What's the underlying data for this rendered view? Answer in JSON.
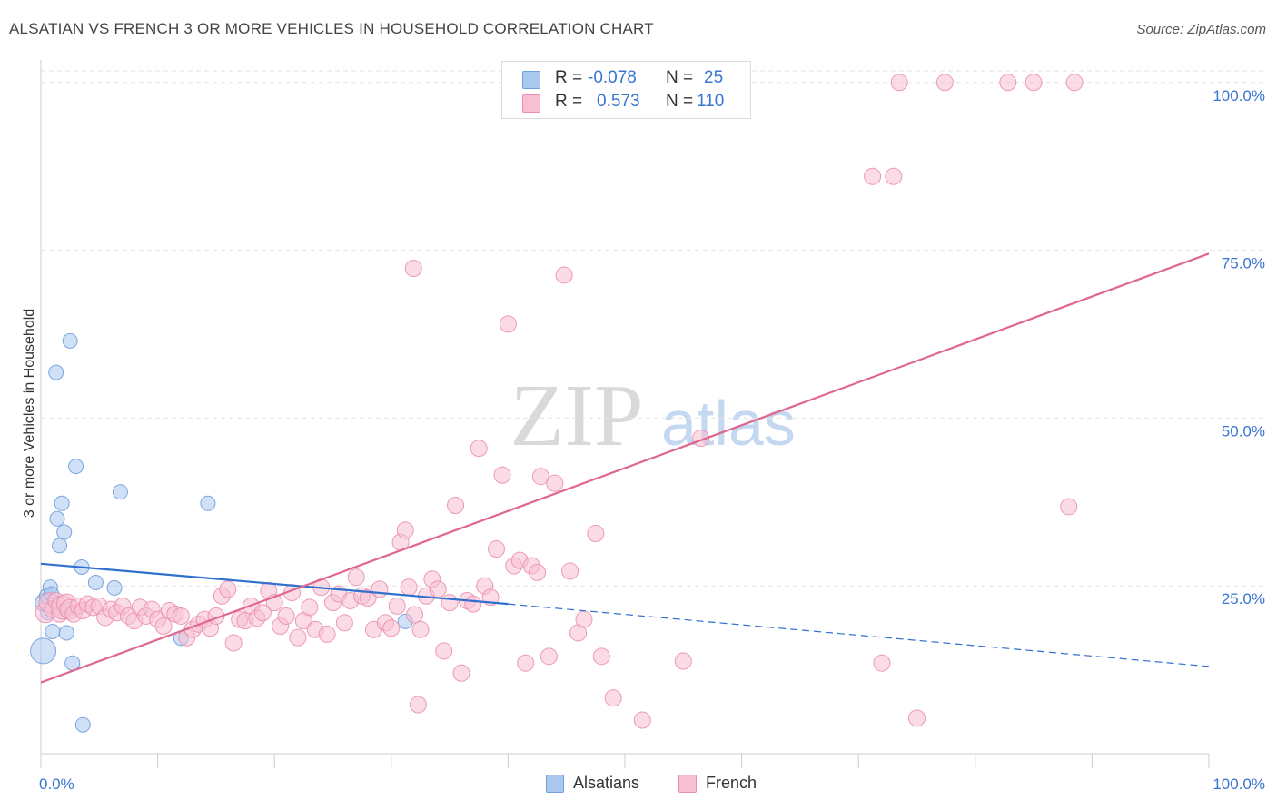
{
  "title": "ALSATIAN VS FRENCH 3 OR MORE VEHICLES IN HOUSEHOLD CORRELATION CHART",
  "source": "Source: ZipAtlas.com",
  "watermark": {
    "zip": "ZIP",
    "atlas": "atlas"
  },
  "legend": {
    "rows": [
      {
        "r_label": "R =",
        "r_value": "-0.078",
        "n_label": "N =",
        "n_value": "25",
        "color": "#a9c7ef",
        "edge": "#6f9fdc"
      },
      {
        "r_label": "R =",
        "r_value": "0.573",
        "n_label": "N =",
        "n_value": "110",
        "color": "#f7bfd1",
        "edge": "#ea8fae"
      }
    ]
  },
  "bottom_legend": [
    {
      "label": "Alsatians",
      "color": "#a9c7ef",
      "edge": "#6f9fdc"
    },
    {
      "label": "French",
      "color": "#f7bfd1",
      "edge": "#ea8fae"
    }
  ],
  "chart_data": {
    "type": "scatter",
    "title": "ALSATIAN VS FRENCH 3 OR MORE VEHICLES IN HOUSEHOLD CORRELATION CHART",
    "xlabel": "",
    "ylabel": "3 or more Vehicles in Household",
    "xlim": [
      0,
      100
    ],
    "ylim": [
      0,
      102
    ],
    "x_tick_labels": [
      "0.0%",
      "100.0%"
    ],
    "y_ticks": [
      25,
      50,
      75,
      100
    ],
    "y_tick_labels": [
      "25.0%",
      "50.0%",
      "75.0%",
      "100.0%"
    ],
    "grid": true,
    "series": [
      {
        "name": "Alsatians",
        "color": "#6f9fdc",
        "fill": "#a9c7ef",
        "trend": {
          "x0": 0,
          "y0": 28.3,
          "x1": 40,
          "y1": 22.3,
          "dash_to_x": 100,
          "dash_to_y": 13.0,
          "color": "#2f6fce"
        },
        "points": [
          [
            0.3,
            22.5,
            10
          ],
          [
            0.5,
            23.5,
            8
          ],
          [
            0.6,
            21.0,
            8
          ],
          [
            0.8,
            24.8,
            8
          ],
          [
            0.9,
            23.8,
            8
          ],
          [
            0.2,
            15.3,
            14
          ],
          [
            1.0,
            18.2,
            8
          ],
          [
            1.3,
            56.8,
            8
          ],
          [
            1.4,
            35.0,
            8
          ],
          [
            1.6,
            31.0,
            8
          ],
          [
            1.8,
            37.3,
            8
          ],
          [
            2.0,
            33.0,
            8
          ],
          [
            2.2,
            18.0,
            8
          ],
          [
            2.5,
            61.5,
            8
          ],
          [
            2.7,
            13.5,
            8
          ],
          [
            3.0,
            42.8,
            8
          ],
          [
            3.5,
            27.8,
            8
          ],
          [
            3.6,
            4.3,
            8
          ],
          [
            4.7,
            25.5,
            8
          ],
          [
            6.3,
            24.7,
            8
          ],
          [
            6.8,
            39.0,
            8
          ],
          [
            12.0,
            17.2,
            8
          ],
          [
            14.3,
            37.3,
            8
          ],
          [
            31.2,
            19.7,
            8
          ],
          [
            2.1,
            21.5,
            8
          ]
        ]
      },
      {
        "name": "French",
        "color": "#ea8fae",
        "fill": "#f7bfd1",
        "trend": {
          "x0": 0,
          "y0": 10.6,
          "x1": 100,
          "y1": 74.5,
          "color": "#e0668f"
        },
        "points": [
          [
            0.4,
            21.0,
            11
          ],
          [
            0.7,
            22.5,
            11
          ],
          [
            1.0,
            21.5,
            9
          ],
          [
            1.3,
            22.8,
            9
          ],
          [
            1.6,
            20.8,
            9
          ],
          [
            1.9,
            21.8,
            13
          ],
          [
            2.2,
            22.3,
            11
          ],
          [
            2.5,
            21.5,
            11
          ],
          [
            2.8,
            20.8,
            9
          ],
          [
            3.2,
            22.0,
            9
          ],
          [
            3.6,
            21.3,
            9
          ],
          [
            4.0,
            22.3,
            9
          ],
          [
            4.5,
            21.8,
            9
          ],
          [
            5.0,
            22.0,
            9
          ],
          [
            5.5,
            20.3,
            9
          ],
          [
            6.0,
            21.5,
            9
          ],
          [
            6.5,
            21.0,
            9
          ],
          [
            7.0,
            22.0,
            9
          ],
          [
            7.5,
            20.5,
            9
          ],
          [
            8.0,
            19.8,
            9
          ],
          [
            8.5,
            21.8,
            9
          ],
          [
            9.0,
            20.5,
            9
          ],
          [
            9.5,
            21.5,
            9
          ],
          [
            10.0,
            20.0,
            9
          ],
          [
            10.5,
            19.0,
            9
          ],
          [
            11.0,
            21.3,
            9
          ],
          [
            11.5,
            20.8,
            9
          ],
          [
            12.0,
            20.5,
            9
          ],
          [
            12.5,
            17.3,
            9
          ],
          [
            13.0,
            18.5,
            9
          ],
          [
            13.5,
            19.3,
            9
          ],
          [
            14.0,
            20.0,
            9
          ],
          [
            14.5,
            18.7,
            9
          ],
          [
            15.0,
            20.5,
            9
          ],
          [
            15.5,
            23.5,
            9
          ],
          [
            16.0,
            24.5,
            9
          ],
          [
            16.5,
            16.5,
            9
          ],
          [
            17.0,
            20.0,
            9
          ],
          [
            17.5,
            19.8,
            9
          ],
          [
            18.0,
            22.0,
            9
          ],
          [
            18.5,
            20.2,
            9
          ],
          [
            19.0,
            21.0,
            9
          ],
          [
            19.5,
            24.3,
            9
          ],
          [
            20.0,
            22.5,
            9
          ],
          [
            20.5,
            19.0,
            9
          ],
          [
            21.0,
            20.5,
            9
          ],
          [
            21.5,
            24.0,
            9
          ],
          [
            22.0,
            17.3,
            9
          ],
          [
            22.5,
            19.8,
            9
          ],
          [
            23.0,
            21.8,
            9
          ],
          [
            23.5,
            18.5,
            9
          ],
          [
            24.0,
            24.8,
            9
          ],
          [
            24.5,
            17.8,
            9
          ],
          [
            25.0,
            22.5,
            9
          ],
          [
            25.5,
            23.8,
            9
          ],
          [
            26.0,
            19.5,
            9
          ],
          [
            26.5,
            22.8,
            9
          ],
          [
            27.0,
            26.3,
            9
          ],
          [
            27.5,
            23.5,
            9
          ],
          [
            28.0,
            23.2,
            9
          ],
          [
            28.5,
            18.5,
            9
          ],
          [
            29.0,
            24.5,
            9
          ],
          [
            29.5,
            19.5,
            9
          ],
          [
            30.0,
            18.7,
            9
          ],
          [
            30.5,
            22.0,
            9
          ],
          [
            30.8,
            31.5,
            9
          ],
          [
            31.2,
            33.3,
            9
          ],
          [
            31.5,
            24.8,
            9
          ],
          [
            32.0,
            20.7,
            9
          ],
          [
            32.5,
            18.5,
            9
          ],
          [
            33.0,
            23.5,
            9
          ],
          [
            33.5,
            26.0,
            9
          ],
          [
            34.0,
            24.5,
            9
          ],
          [
            34.5,
            15.3,
            9
          ],
          [
            35.0,
            22.5,
            9
          ],
          [
            35.5,
            37.0,
            9
          ],
          [
            36.0,
            12.0,
            9
          ],
          [
            36.5,
            22.8,
            9
          ],
          [
            37.0,
            22.3,
            9
          ],
          [
            37.5,
            45.5,
            9
          ],
          [
            38.0,
            25.0,
            9
          ],
          [
            38.5,
            23.3,
            9
          ],
          [
            39.0,
            30.5,
            9
          ],
          [
            39.5,
            41.5,
            9
          ],
          [
            40.0,
            64.0,
            9
          ],
          [
            40.5,
            28.0,
            9
          ],
          [
            41.0,
            28.8,
            9
          ],
          [
            41.5,
            13.5,
            9
          ],
          [
            42.0,
            28.0,
            9
          ],
          [
            42.5,
            27.0,
            9
          ],
          [
            42.8,
            41.3,
            9
          ],
          [
            43.5,
            14.5,
            9
          ],
          [
            44.0,
            40.3,
            9
          ],
          [
            44.8,
            71.3,
            9
          ],
          [
            45.3,
            27.2,
            9
          ],
          [
            31.9,
            72.3,
            9
          ],
          [
            32.3,
            7.3,
            9
          ],
          [
            46.0,
            18.0,
            9
          ],
          [
            46.5,
            20.0,
            9
          ],
          [
            47.5,
            32.8,
            9
          ],
          [
            48.0,
            14.5,
            9
          ],
          [
            49.0,
            8.3,
            9
          ],
          [
            51.5,
            5.0,
            9
          ],
          [
            55.0,
            13.8,
            9
          ],
          [
            56.5,
            47.0,
            9
          ],
          [
            71.2,
            86.0,
            9
          ],
          [
            73.0,
            86.0,
            9
          ],
          [
            73.5,
            100.0,
            9
          ],
          [
            75.0,
            5.3,
            9
          ],
          [
            82.8,
            100.0,
            9
          ],
          [
            85.0,
            100.0,
            9
          ],
          [
            88.0,
            36.8,
            9
          ],
          [
            88.5,
            100.0,
            9
          ],
          [
            77.4,
            100.0,
            9
          ],
          [
            72.0,
            13.5,
            9
          ]
        ]
      }
    ]
  }
}
